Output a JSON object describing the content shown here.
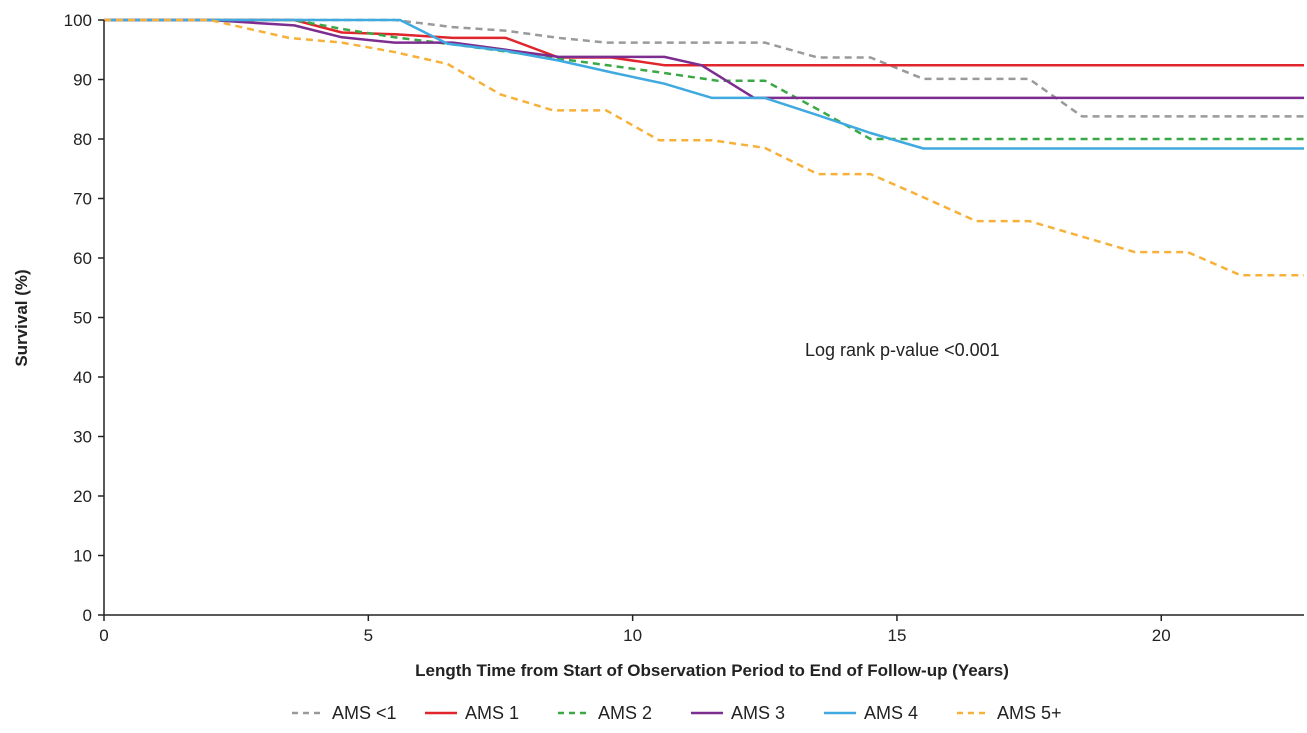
{
  "chart_data": {
    "type": "line",
    "title": "",
    "xlabel": "Length Time from Start of Observation Period to End of Follow-up (Years)",
    "ylabel": "Survival (%)",
    "xlim": [
      0,
      22.7
    ],
    "ylim": [
      0,
      100
    ],
    "xticks": [
      0,
      5,
      10,
      15,
      20
    ],
    "yticks": [
      0,
      10,
      20,
      30,
      40,
      50,
      60,
      70,
      80,
      90,
      100
    ],
    "grid": false,
    "legend_position": "bottom",
    "annotation": "Log rank p-value <0.001",
    "series": [
      {
        "name": "AMS <1",
        "color": "#9a9a9a",
        "dashed": true,
        "x": [
          0,
          3.6,
          5.5,
          6.6,
          7.6,
          8.6,
          9.5,
          12.5,
          13.5,
          14.5,
          15.5,
          17.5,
          18.5,
          22.7
        ],
        "y": [
          100,
          100,
          100,
          98.8,
          98.2,
          97.0,
          96.2,
          96.2,
          93.7,
          93.7,
          90.1,
          90.1,
          83.8,
          83.8
        ]
      },
      {
        "name": "AMS 1",
        "color": "#e0252c",
        "dashed": false,
        "x": [
          0,
          3.6,
          4.5,
          5.5,
          6.6,
          7.6,
          8.6,
          9.6,
          10.6,
          22.7
        ],
        "y": [
          100,
          100,
          97.9,
          97.6,
          97.0,
          97.0,
          93.7,
          93.7,
          92.4,
          92.4
        ]
      },
      {
        "name": "AMS 2",
        "color": "#3aa845",
        "dashed": true,
        "x": [
          0,
          3.6,
          4.5,
          5.5,
          6.6,
          7.6,
          8.6,
          9.6,
          10.6,
          11.6,
          12.5,
          13.5,
          14.5,
          22.7
        ],
        "y": [
          100,
          100,
          98.5,
          97.1,
          95.9,
          94.7,
          93.5,
          92.3,
          91.1,
          89.8,
          89.8,
          85.0,
          80.0,
          80.0
        ]
      },
      {
        "name": "AMS 3",
        "color": "#7d2c8f",
        "dashed": false,
        "x": [
          0,
          2,
          3.6,
          4.5,
          5.5,
          6.6,
          7.6,
          8.6,
          9.6,
          10.6,
          11.3,
          12.3,
          22.7
        ],
        "y": [
          100,
          100,
          99.1,
          97.1,
          96.2,
          96.2,
          95.0,
          93.8,
          93.8,
          93.8,
          92.4,
          86.9,
          86.9
        ]
      },
      {
        "name": "AMS 4",
        "color": "#3fa9e0",
        "dashed": false,
        "x": [
          0,
          5.6,
          6.5,
          7.6,
          8.6,
          9.6,
          10.6,
          11.5,
          12.5,
          13.5,
          14.5,
          15.5,
          22.7
        ],
        "y": [
          100,
          100,
          96.0,
          94.8,
          93.2,
          91.2,
          89.3,
          86.9,
          86.9,
          84.0,
          81.0,
          78.4,
          78.4
        ]
      },
      {
        "name": "AMS 5+",
        "color": "#f7b13a",
        "dashed": true,
        "x": [
          0,
          2,
          3.5,
          4.5,
          5.5,
          6.5,
          7.5,
          8.5,
          9.5,
          10.5,
          11.5,
          12.5,
          13.5,
          14.5,
          15.5,
          16.5,
          17.5,
          18.5,
          19.5,
          20.5,
          21.5,
          22.7
        ],
        "y": [
          100,
          100,
          97.0,
          96.2,
          94.6,
          92.6,
          87.5,
          84.8,
          84.8,
          79.8,
          79.8,
          78.5,
          74.1,
          74.1,
          70.2,
          66.2,
          66.2,
          63.6,
          61.0,
          61.0,
          57.1,
          57.1
        ]
      }
    ]
  }
}
